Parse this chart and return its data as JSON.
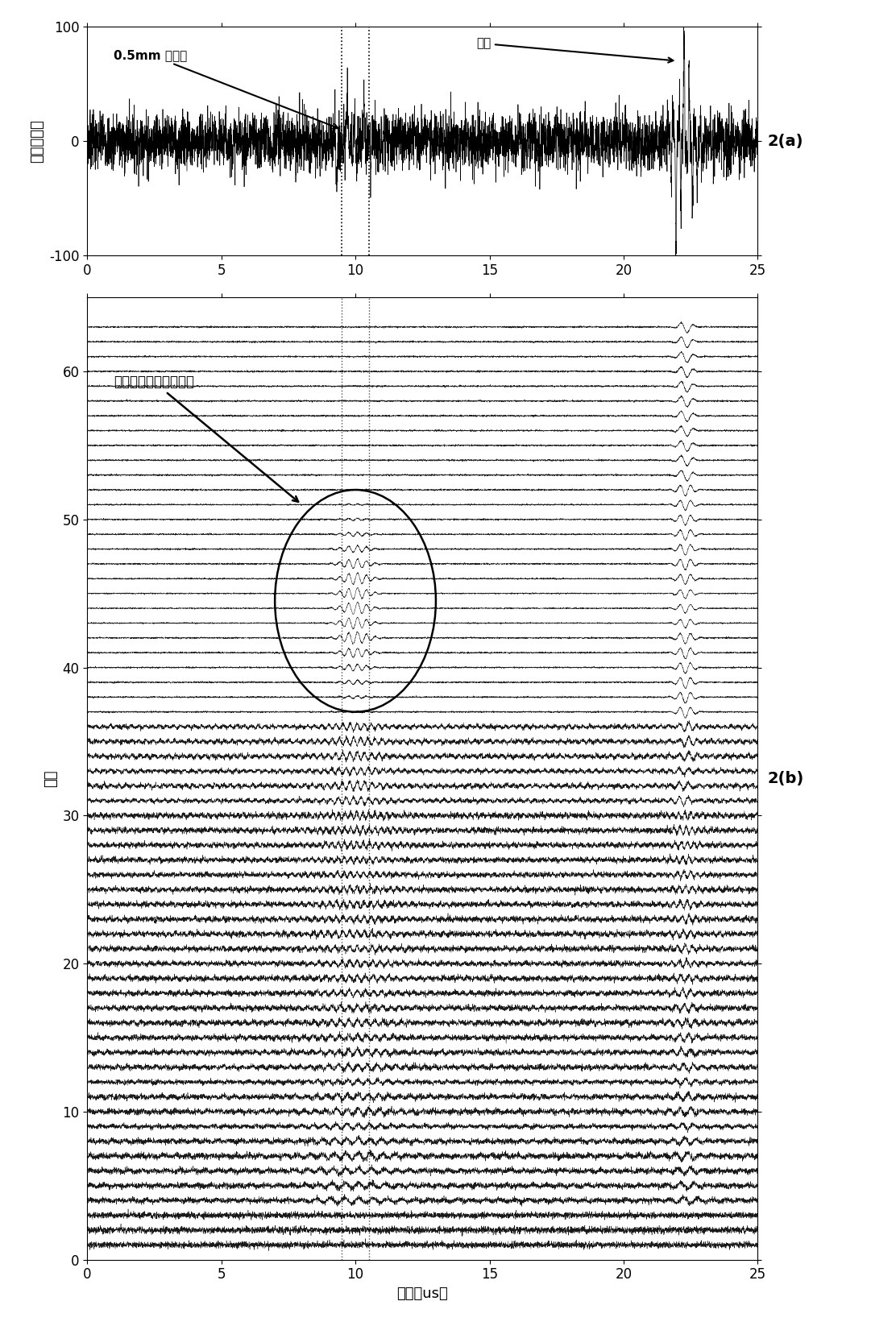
{
  "title_a": "2(a)",
  "title_b": "2(b)",
  "label_top_annotation": "0.5mm 横通孔",
  "label_bottom_annotation": "底波",
  "label_inner_b": "提取出的子带缺陷信号",
  "ylabel_a": "幅度（％）",
  "ylabel_b": "尺度",
  "xlabel_b": "时间（us）",
  "ylim_a": [
    -100,
    100
  ],
  "xlim": [
    0,
    25
  ],
  "ylim_b": [
    0,
    65
  ],
  "yticks_a": [
    -100,
    0,
    100
  ],
  "xticks": [
    0,
    5,
    10,
    15,
    20,
    25
  ],
  "yticks_b": [
    0,
    10,
    20,
    30,
    40,
    50,
    60
  ],
  "vline_positions": [
    9.5,
    10.5
  ],
  "n_scales": 63,
  "bg_color": "#ffffff",
  "signal_color": "#000000",
  "bottom_wave_time": 22.3,
  "defect_time": 10.0
}
